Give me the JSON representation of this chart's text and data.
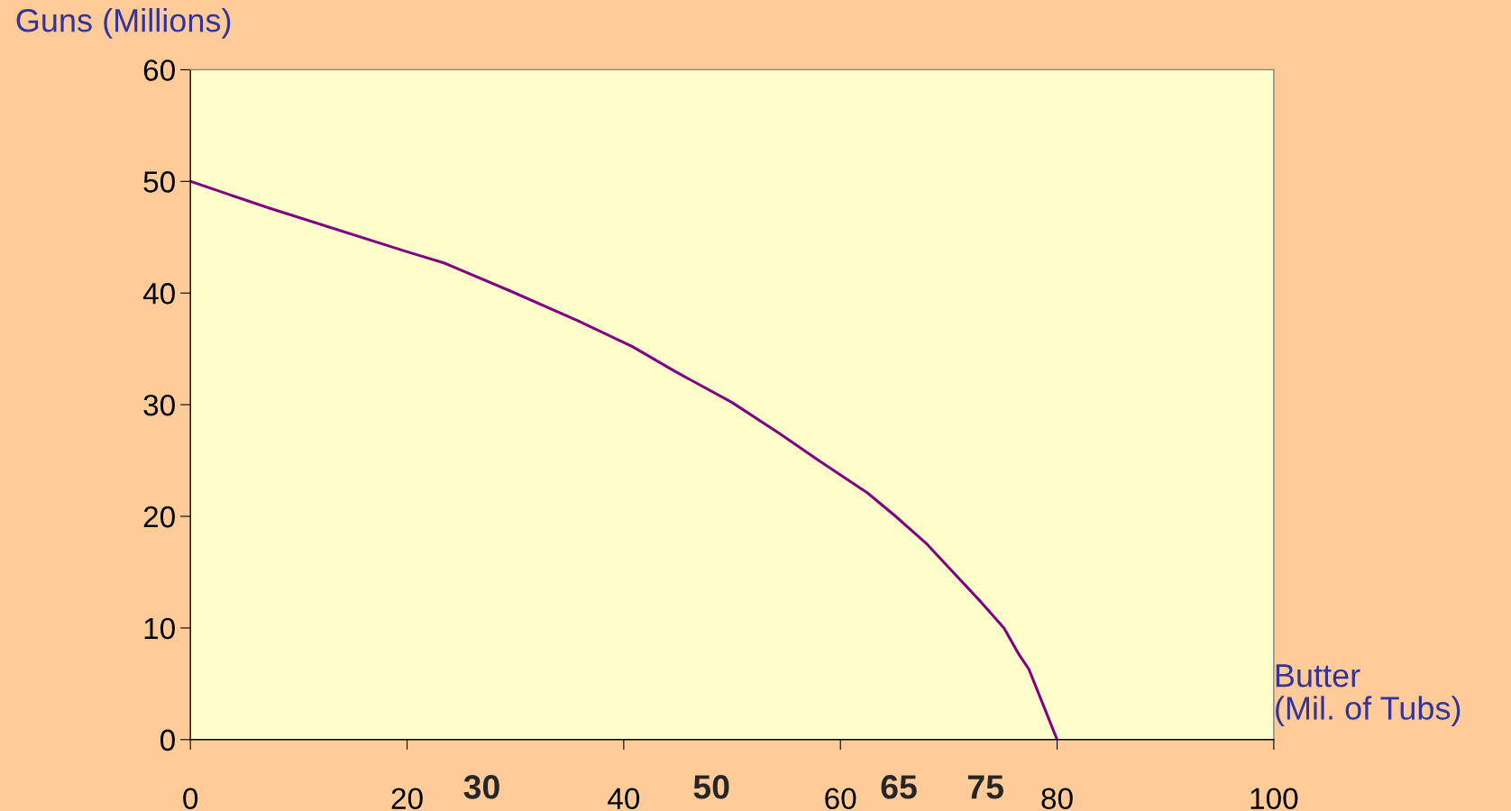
{
  "chart_data": {
    "type": "line",
    "ylabel": "Guns (Millions)",
    "xlabel": "Butter\n(Mil. of Tubs)",
    "x": [
      0,
      7.3,
      20,
      23.4,
      29.5,
      35.8,
      40.8,
      44.7,
      50,
      54.4,
      58,
      62.5,
      65.1,
      68,
      70.5,
      73,
      75.1,
      76.5,
      77.4,
      80
    ],
    "series": [
      {
        "color": "#800080",
        "values": [
          50,
          47.6,
          43.7,
          42.7,
          40.2,
          37.5,
          35.2,
          33,
          30.2,
          27.4,
          25,
          22.1,
          20,
          17.5,
          14.9,
          12.3,
          10,
          7.6,
          6.3,
          0
        ]
      }
    ],
    "xlim": [
      0,
      100
    ],
    "xticks": [
      0,
      20,
      40,
      60,
      80,
      100
    ],
    "ylim": [
      0,
      60
    ],
    "yticks": [
      0,
      10,
      20,
      30,
      40,
      50,
      60
    ],
    "grid": false,
    "legend": false,
    "marker": "none",
    "line_style": "solid",
    "annotations": [
      "30",
      "50",
      "65",
      "75"
    ]
  }
}
